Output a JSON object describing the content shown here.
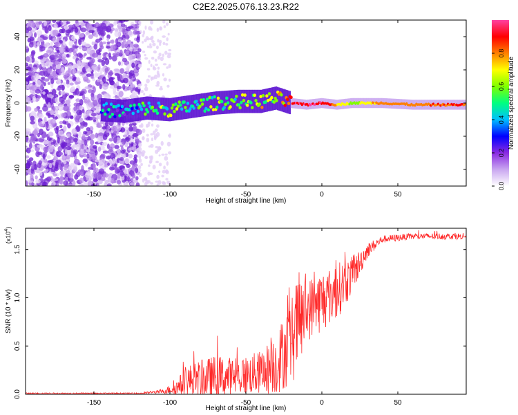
{
  "title": "C2E2.2025.076.13.23.R22",
  "chart_data": [
    {
      "type": "heatmap",
      "xlabel": "Height of straight line (km)",
      "ylabel": "Frequency (Hz)",
      "xlim": [
        -195,
        95
      ],
      "ylim": [
        -50,
        50
      ],
      "x_ticks": [
        -150,
        -100,
        -50,
        0,
        50
      ],
      "x_tick_labels": [
        "-150",
        "-100",
        "-50",
        "0",
        "50"
      ],
      "y_ticks": [
        -40,
        -20,
        0,
        20,
        40
      ],
      "y_tick_labels": [
        "-40",
        "-20",
        "0",
        "20",
        "40"
      ],
      "colorbar": {
        "label": "Normalized spectral amplitude",
        "range": [
          0,
          1
        ],
        "ticks": [
          0.0,
          0.2,
          0.4,
          0.6,
          0.8
        ],
        "tick_labels": [
          "0.0",
          "0.2",
          "0.4",
          "0.6",
          "0.8"
        ],
        "colors": [
          "#ffffff",
          "#c9a6f0",
          "#8a2be2",
          "#0000ff",
          "#00bfff",
          "#00ff80",
          "#80ff00",
          "#ffff00",
          "#ff8000",
          "#ff0000",
          "#ff40a0"
        ]
      },
      "features": {
        "noise_region_x": [
          -195,
          -120
        ],
        "sparse_noise_x": [
          -120,
          -100
        ],
        "line_center_freq_hz": 0,
        "line_points": [
          {
            "x": -145,
            "f": -4,
            "a": 0.35
          },
          {
            "x": -130,
            "f": -5,
            "a": 0.3
          },
          {
            "x": -115,
            "f": -3,
            "a": 0.45
          },
          {
            "x": -100,
            "f": -4,
            "a": 0.5
          },
          {
            "x": -85,
            "f": -2,
            "a": 0.45
          },
          {
            "x": -70,
            "f": 0,
            "a": 0.5
          },
          {
            "x": -55,
            "f": 1,
            "a": 0.55
          },
          {
            "x": -40,
            "f": 1,
            "a": 0.6
          },
          {
            "x": -30,
            "f": 3,
            "a": 0.55
          },
          {
            "x": -20,
            "f": 0,
            "a": 0.9
          },
          {
            "x": -10,
            "f": -1,
            "a": 0.9
          },
          {
            "x": 0,
            "f": 0,
            "a": 0.9
          },
          {
            "x": 10,
            "f": -1,
            "a": 0.7
          },
          {
            "x": 20,
            "f": 0,
            "a": 0.55
          },
          {
            "x": 40,
            "f": 0,
            "a": 0.75
          },
          {
            "x": 60,
            "f": -1,
            "a": 0.75
          },
          {
            "x": 80,
            "f": -1,
            "a": 0.8
          },
          {
            "x": 95,
            "f": -1,
            "a": 0.8
          }
        ]
      }
    },
    {
      "type": "line",
      "xlabel": "Height of straight line (km)",
      "ylabel": "SNR (10 * v/v)",
      "y_multiplier": "(x10",
      "y_multiplier_exp": "4",
      "y_multiplier_close": ")",
      "xlim": [
        -195,
        95
      ],
      "ylim": [
        0,
        1.72
      ],
      "x_ticks": [
        -150,
        -100,
        -50,
        0,
        50
      ],
      "x_tick_labels": [
        "-150",
        "-100",
        "-50",
        "0",
        "50"
      ],
      "y_ticks": [
        0.0,
        0.5,
        1.0,
        1.5
      ],
      "y_tick_labels": [
        "0.0",
        "0.5",
        "1.0",
        "1.5"
      ],
      "series": [
        {
          "color": "#ff2a2a",
          "envelope": [
            {
              "x": -195,
              "base": 0.01,
              "spread": 0.01
            },
            {
              "x": -120,
              "base": 0.01,
              "spread": 0.01
            },
            {
              "x": -105,
              "base": 0.03,
              "spread": 0.03
            },
            {
              "x": -95,
              "base": 0.08,
              "spread": 0.12
            },
            {
              "x": -90,
              "base": 0.15,
              "spread": 0.25
            },
            {
              "x": -70,
              "base": 0.2,
              "spread": 0.35
            },
            {
              "x": -55,
              "base": 0.2,
              "spread": 0.3
            },
            {
              "x": -40,
              "base": 0.25,
              "spread": 0.35
            },
            {
              "x": -30,
              "base": 0.35,
              "spread": 0.5
            },
            {
              "x": -20,
              "base": 0.6,
              "spread": 0.7
            },
            {
              "x": -15,
              "base": 0.8,
              "spread": 0.8
            },
            {
              "x": -10,
              "base": 0.9,
              "spread": 0.5
            },
            {
              "x": 0,
              "base": 1.0,
              "spread": 0.5
            },
            {
              "x": 10,
              "base": 1.1,
              "spread": 0.45
            },
            {
              "x": 20,
              "base": 1.25,
              "spread": 0.3
            },
            {
              "x": 30,
              "base": 1.5,
              "spread": 0.12
            },
            {
              "x": 40,
              "base": 1.61,
              "spread": 0.06
            },
            {
              "x": 60,
              "base": 1.64,
              "spread": 0.05
            },
            {
              "x": 95,
              "base": 1.64,
              "spread": 0.05
            }
          ]
        }
      ]
    }
  ]
}
